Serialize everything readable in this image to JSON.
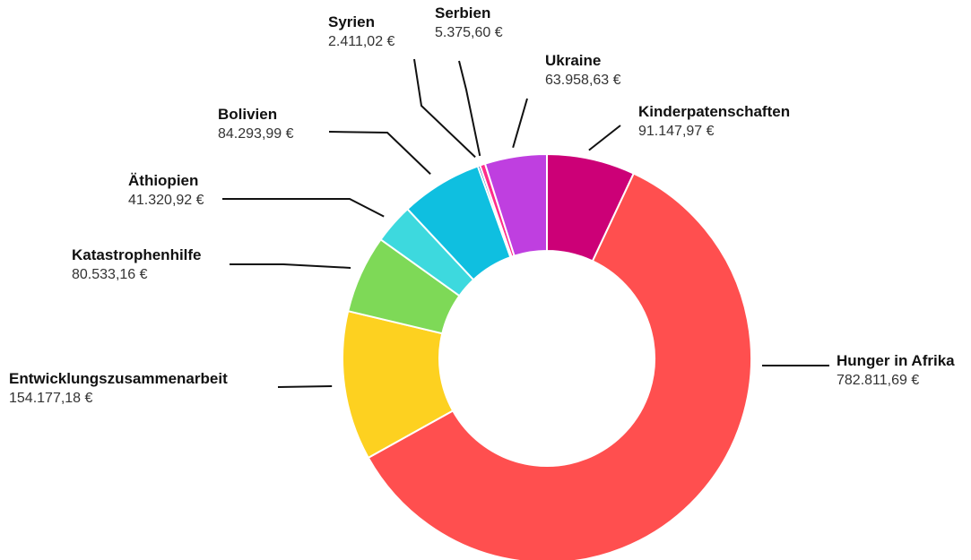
{
  "chart_data": {
    "type": "pie",
    "variant": "donut",
    "title": "",
    "legend": "none",
    "series": [
      {
        "slices": [
          {
            "label": "Kinderpatenschaften",
            "value": 91147.97,
            "value_label": "91.147,97 €",
            "color": "#cc0077"
          },
          {
            "label": "Hunger in Afrika",
            "value": 782811.69,
            "value_label": "782.811,69 €",
            "color": "#ff4f4f"
          },
          {
            "label": "Entwicklungszusammenarbeit",
            "value": 154177.18,
            "value_label": "154.177,18  €",
            "color": "#fdd120"
          },
          {
            "label": "Katastrophenhilfe",
            "value": 80533.16,
            "value_label": "80.533,16 €",
            "color": "#7ed957"
          },
          {
            "label": "Äthiopien",
            "value": 41320.92,
            "value_label": "41.320,92 €",
            "color": "#3dd9de"
          },
          {
            "label": "Bolivien",
            "value": 84293.99,
            "value_label": "84.293,99 €",
            "color": "#0fbfe0"
          },
          {
            "label": "Syrien",
            "value": 2411.02,
            "value_label": "2.411,02 €",
            "color": "#0a4fa8"
          },
          {
            "label": "Serbien",
            "value": 5375.6,
            "value_label": "5.375,60 €",
            "color": "#ff2d8a"
          },
          {
            "label": "Ukraine",
            "value": 63958.63,
            "value_label": "63.958,63 €",
            "color": "#bf3fe0"
          }
        ]
      }
    ]
  }
}
